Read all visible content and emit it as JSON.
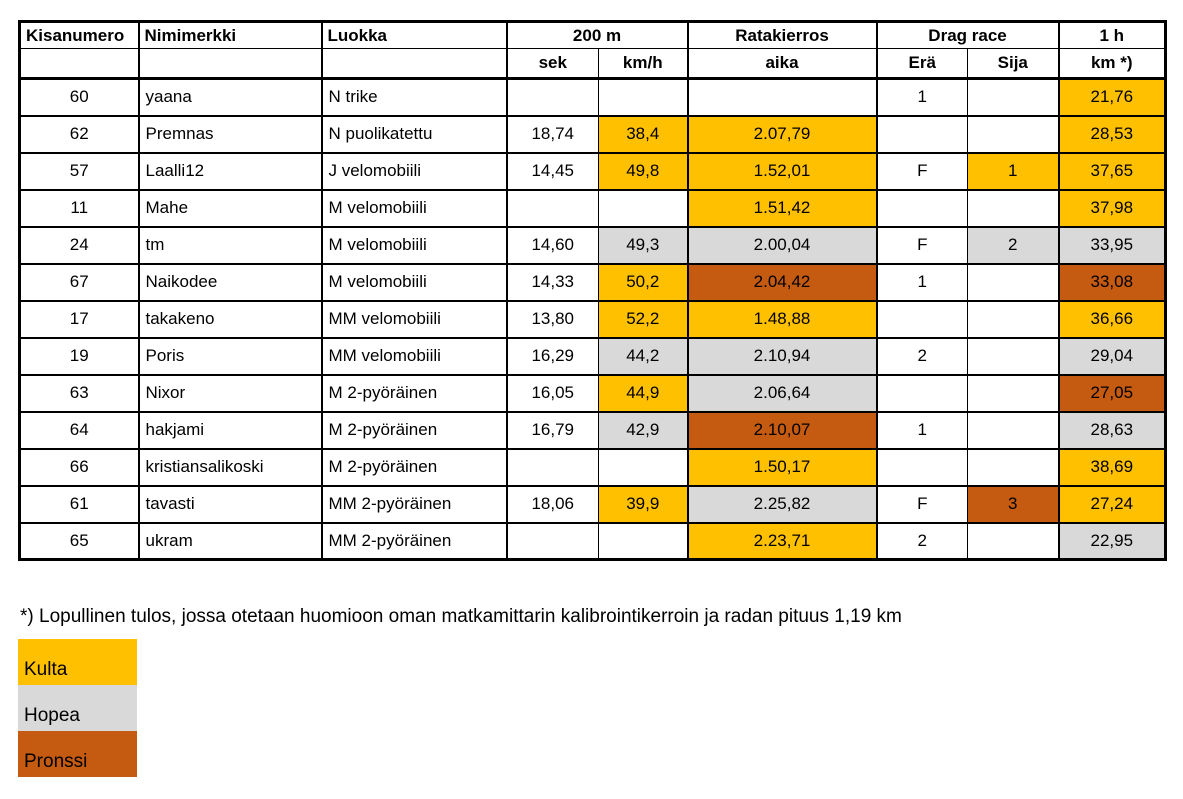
{
  "colors": {
    "gold": "#FFC000",
    "silver": "#D9D9D9",
    "bronze": "#C55A11",
    "border": "#000000",
    "background": "#FFFFFF"
  },
  "table": {
    "header": {
      "kisanumero": "Kisanumero",
      "nimimerkki": "Nimimerkki",
      "luokka": "Luokka",
      "group_200m": "200 m",
      "sek": "sek",
      "kmh": "km/h",
      "group_ratakierros": "Ratakierros",
      "aika": "aika",
      "group_dragrace": "Drag race",
      "era": "Erä",
      "sija": "Sija",
      "group_1h": "1 h",
      "km": "km *)"
    },
    "rows": [
      {
        "kisanumero": "60",
        "nimimerkki": "yaana",
        "luokka": "N trike",
        "sek": "",
        "kmh": "",
        "kmh_medal": null,
        "aika": "",
        "aika_medal": null,
        "era": "1",
        "sija": "",
        "sija_medal": null,
        "km": "21,76",
        "km_medal": "gold"
      },
      {
        "kisanumero": "62",
        "nimimerkki": "Premnas",
        "luokka": "N puolikatettu",
        "sek": "18,74",
        "kmh": "38,4",
        "kmh_medal": "gold",
        "aika": "2.07,79",
        "aika_medal": "gold",
        "era": "",
        "sija": "",
        "sija_medal": null,
        "km": "28,53",
        "km_medal": "gold"
      },
      {
        "kisanumero": "57",
        "nimimerkki": "Laalli12",
        "luokka": "J velomobiili",
        "sek": "14,45",
        "kmh": "49,8",
        "kmh_medal": "gold",
        "aika": "1.52,01",
        "aika_medal": "gold",
        "era": "F",
        "sija": "1",
        "sija_medal": "gold",
        "km": "37,65",
        "km_medal": "gold"
      },
      {
        "kisanumero": "11",
        "nimimerkki": "Mahe",
        "luokka": "M velomobiili",
        "sek": "",
        "kmh": "",
        "kmh_medal": null,
        "aika": "1.51,42",
        "aika_medal": "gold",
        "era": "",
        "sija": "",
        "sija_medal": null,
        "km": "37,98",
        "km_medal": "gold"
      },
      {
        "kisanumero": "24",
        "nimimerkki": "tm",
        "luokka": "M velomobiili",
        "sek": "14,60",
        "kmh": "49,3",
        "kmh_medal": "silver",
        "aika": "2.00,04",
        "aika_medal": "silver",
        "era": "F",
        "sija": "2",
        "sija_medal": "silver",
        "km": "33,95",
        "km_medal": "silver"
      },
      {
        "kisanumero": "67",
        "nimimerkki": "Naikodee",
        "luokka": "M velomobiili",
        "sek": "14,33",
        "kmh": "50,2",
        "kmh_medal": "gold",
        "aika": "2.04,42",
        "aika_medal": "bronze",
        "era": "1",
        "sija": "",
        "sija_medal": null,
        "km": "33,08",
        "km_medal": "bronze"
      },
      {
        "kisanumero": "17",
        "nimimerkki": "takakeno",
        "luokka": "MM velomobiili",
        "sek": "13,80",
        "kmh": "52,2",
        "kmh_medal": "gold",
        "aika": "1.48,88",
        "aika_medal": "gold",
        "era": "",
        "sija": "",
        "sija_medal": null,
        "km": "36,66",
        "km_medal": "gold"
      },
      {
        "kisanumero": "19",
        "nimimerkki": "Poris",
        "luokka": "MM velomobiili",
        "sek": "16,29",
        "kmh": "44,2",
        "kmh_medal": "silver",
        "aika": "2.10,94",
        "aika_medal": "silver",
        "era": "2",
        "sija": "",
        "sija_medal": null,
        "km": "29,04",
        "km_medal": "silver"
      },
      {
        "kisanumero": "63",
        "nimimerkki": "Nixor",
        "luokka": "M 2-pyöräinen",
        "sek": "16,05",
        "kmh": "44,9",
        "kmh_medal": "gold",
        "aika": "2.06,64",
        "aika_medal": "silver",
        "era": "",
        "sija": "",
        "sija_medal": null,
        "km": "27,05",
        "km_medal": "bronze"
      },
      {
        "kisanumero": "64",
        "nimimerkki": "hakjami",
        "luokka": "M 2-pyöräinen",
        "sek": "16,79",
        "kmh": "42,9",
        "kmh_medal": "silver",
        "aika": "2.10,07",
        "aika_medal": "bronze",
        "era": "1",
        "sija": "",
        "sija_medal": null,
        "km": "28,63",
        "km_medal": "silver"
      },
      {
        "kisanumero": "66",
        "nimimerkki": "kristiansalikoski",
        "luokka": "M 2-pyöräinen",
        "sek": "",
        "kmh": "",
        "kmh_medal": null,
        "aika": "1.50,17",
        "aika_medal": "gold",
        "era": "",
        "sija": "",
        "sija_medal": null,
        "km": "38,69",
        "km_medal": "gold"
      },
      {
        "kisanumero": "61",
        "nimimerkki": "tavasti",
        "luokka": "MM 2-pyöräinen",
        "sek": "18,06",
        "kmh": "39,9",
        "kmh_medal": "gold",
        "aika": "2.25,82",
        "aika_medal": "silver",
        "era": "F",
        "sija": "3",
        "sija_medal": "bronze",
        "km": "27,24",
        "km_medal": "gold"
      },
      {
        "kisanumero": "65",
        "nimimerkki": "ukram",
        "luokka": "MM 2-pyöräinen",
        "sek": "",
        "kmh": "",
        "kmh_medal": null,
        "aika": "2.23,71",
        "aika_medal": "gold",
        "era": "2",
        "sija": "",
        "sija_medal": null,
        "km": "22,95",
        "km_medal": "silver"
      }
    ]
  },
  "footnote": "*) Lopullinen tulos, jossa otetaan huomioon oman matkamittarin kalibrointikerroin ja radan pituus 1,19 km",
  "legend": [
    {
      "label": "Kulta",
      "medal": "gold"
    },
    {
      "label": "Hopea",
      "medal": "silver"
    },
    {
      "label": "Pronssi",
      "medal": "bronze"
    }
  ]
}
